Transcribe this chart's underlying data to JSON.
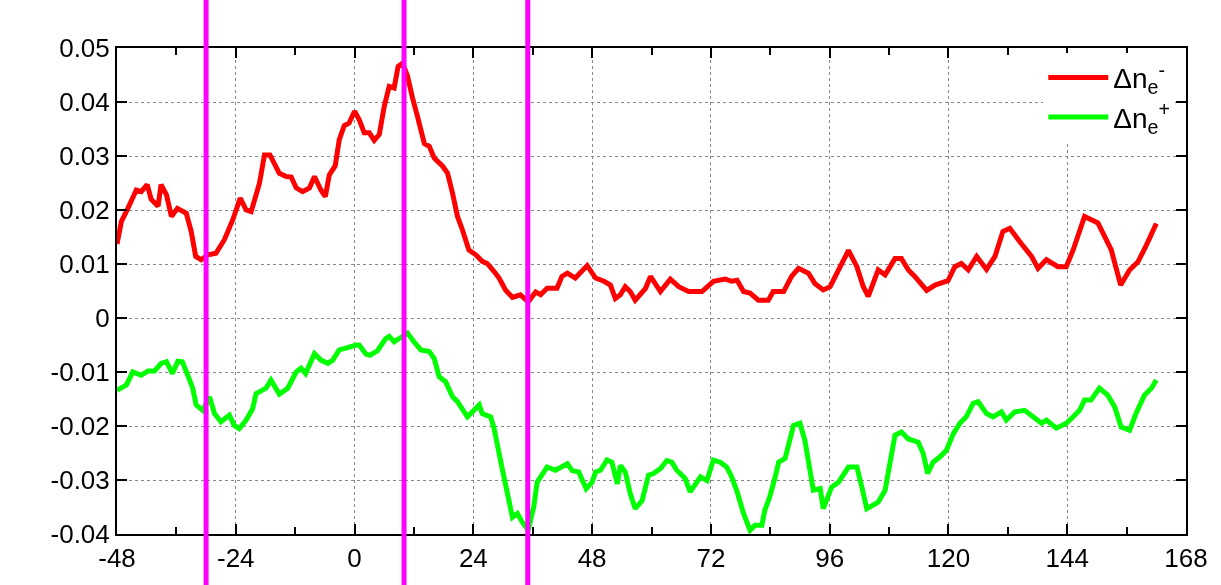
{
  "chart_data": {
    "type": "line",
    "xlim": [
      -48,
      168
    ],
    "ylim": [
      -0.04,
      0.05
    ],
    "xticks": [
      -48,
      {
        "value": -36,
        "label": null
      },
      -24,
      {
        "value": -12,
        "label": null
      },
      0,
      {
        "value": 12,
        "label": null
      },
      24,
      {
        "value": 36,
        "label": null
      },
      48,
      {
        "value": 60,
        "label": null
      },
      72,
      {
        "value": 84,
        "label": null
      },
      96,
      {
        "value": 108,
        "label": null
      },
      120,
      {
        "value": 132,
        "label": null
      },
      144,
      {
        "value": 156,
        "label": null
      },
      168
    ],
    "yticks": [
      -0.04,
      -0.03,
      -0.02,
      -0.01,
      0,
      0.01,
      0.02,
      0.03,
      0.04,
      0.05
    ],
    "grid": true,
    "legend": "top right",
    "line_style": "solid",
    "marker": "none",
    "ref_lines": [
      {
        "axis": "x",
        "value": -30,
        "color": "#ff00ff"
      },
      {
        "axis": "x",
        "value": 10,
        "color": "#ff00ff"
      },
      {
        "axis": "x",
        "value": 35,
        "color": "#ff00ff"
      }
    ],
    "series": [
      {
        "name": "Δn$_{e}$$^{-}$",
        "color": "#ff0000",
        "x": [
          -48.0,
          -47.1,
          -45.8,
          -44.1,
          -43.1,
          -41.9,
          -41.1,
          -39.7,
          -39.1,
          -38.0,
          -37.0,
          -35.8,
          -34.0,
          -33.0,
          -32.1,
          -31.0,
          -29.6,
          -28.0,
          -26.3,
          -24.6,
          -23.1,
          -21.9,
          -20.9,
          -19.2,
          -18.2,
          -17.1,
          -15.2,
          -13.8,
          -12.8,
          -11.8,
          -10.5,
          -9.1,
          -8.1,
          -6.8,
          -5.9,
          -5.1,
          -3.9,
          -3.1,
          -2.1,
          -1.1,
          0,
          0.95,
          1.96,
          2.97,
          3.98,
          5.0,
          6.0,
          7.0,
          8.0,
          8.8,
          9.7,
          10.7,
          11.7,
          12.7,
          14.1,
          15.1,
          16.1,
          17.8,
          18.8,
          19.8,
          20.8,
          21.8,
          23.1,
          24.5,
          25.8,
          26.8,
          28.2,
          29.2,
          30.5,
          31.9,
          33.5,
          35.1,
          36.6,
          37.6,
          38.9,
          40.9,
          41.9,
          43.0,
          44.6,
          47.0,
          48.7,
          50.4,
          51.7,
          52.7,
          53.7,
          54.7,
          55.7,
          56.7,
          58.8,
          59.8,
          61.8,
          63.8,
          65.5,
          67.5,
          70.2,
          72.5,
          74.9,
          76.2,
          77.3,
          78.6,
          79.9,
          81.6,
          83.6,
          84.6,
          86.7,
          88.3,
          89.7,
          91.7,
          93.0,
          94.7,
          96.1,
          97.8,
          99.8,
          101.5,
          102.8,
          103.8,
          105.8,
          107.2,
          109.2,
          110.5,
          111.9,
          113.2,
          115.6,
          117.3,
          119.9,
          121.3,
          122.6,
          124.0,
          125.7,
          127.7,
          129.4,
          131.0,
          132.4,
          134.7,
          136.8,
          138.1,
          139.8,
          142.1,
          143.8,
          145.2,
          147.5,
          150.2,
          152.9,
          154.8,
          156.6,
          158.3,
          160.0,
          162.0
        ],
        "values": [
          0.0137,
          0.0179,
          0.0203,
          0.0237,
          0.0234,
          0.0247,
          0.022,
          0.0207,
          0.0247,
          0.0228,
          0.0188,
          0.0203,
          0.0194,
          0.016,
          0.0114,
          0.0108,
          0.0117,
          0.012,
          0.0145,
          0.0182,
          0.0222,
          0.02,
          0.0197,
          0.025,
          0.0302,
          0.0302,
          0.0268,
          0.0262,
          0.0261,
          0.0241,
          0.0234,
          0.0241,
          0.0262,
          0.0237,
          0.0225,
          0.0265,
          0.0282,
          0.033,
          0.0356,
          0.0361,
          0.0383,
          0.0367,
          0.0343,
          0.0343,
          0.0329,
          0.034,
          0.0392,
          0.0429,
          0.0426,
          0.0466,
          0.0472,
          0.0448,
          0.0408,
          0.0374,
          0.0323,
          0.0318,
          0.0296,
          0.0281,
          0.0268,
          0.0231,
          0.0188,
          0.0163,
          0.0126,
          0.0117,
          0.0105,
          0.0101,
          0.0086,
          0.0074,
          0.0052,
          0.0038,
          0.0043,
          0.003,
          0.0048,
          0.0043,
          0.0055,
          0.0055,
          0.0077,
          0.0083,
          0.0074,
          0.0097,
          0.0074,
          0.0068,
          0.0061,
          0.0036,
          0.0043,
          0.0058,
          0.0049,
          0.0033,
          0.0055,
          0.0077,
          0.0049,
          0.0072,
          0.0058,
          0.0049,
          0.0049,
          0.0068,
          0.0072,
          0.0068,
          0.007,
          0.0049,
          0.0046,
          0.0033,
          0.0033,
          0.0049,
          0.0049,
          0.0077,
          0.0092,
          0.0083,
          0.0064,
          0.0052,
          0.0058,
          0.0089,
          0.0125,
          0.0095,
          0.0058,
          0.004,
          0.0089,
          0.008,
          0.011,
          0.011,
          0.0089,
          0.0077,
          0.0051,
          0.0061,
          0.0069,
          0.0095,
          0.0101,
          0.0089,
          0.0114,
          0.009,
          0.0114,
          0.016,
          0.0166,
          0.0138,
          0.0114,
          0.0092,
          0.0108,
          0.0095,
          0.0095,
          0.0126,
          0.0188,
          0.0176,
          0.0126,
          0.0061,
          0.0089,
          0.0104,
          0.0135,
          0.0175
        ]
      },
      {
        "name": "Δn$_{e}$$^{+}$",
        "color": "#00ff00",
        "x": [
          -48.0,
          -46.1,
          -44.8,
          -43.1,
          -41.7,
          -40.4,
          -39.1,
          -38.0,
          -36.8,
          -35.7,
          -34.8,
          -33.7,
          -32.7,
          -32.0,
          -30.7,
          -29.3,
          -28.3,
          -27.0,
          -25.3,
          -24.3,
          -23.3,
          -21.9,
          -20.6,
          -19.9,
          -17.9,
          -16.9,
          -15.2,
          -13.5,
          -11.8,
          -10.8,
          -9.9,
          -8.1,
          -6.8,
          -5.4,
          -4.4,
          -3.1,
          -1.4,
          0.3,
          0.95,
          2.3,
          3.1,
          4.6,
          6.3,
          7.0,
          8.0,
          9.7,
          10.7,
          12.0,
          13.4,
          15.1,
          16.1,
          17.1,
          18.4,
          19.8,
          20.8,
          22.8,
          25.2,
          25.8,
          27.5,
          28.2,
          29.9,
          31.9,
          32.9,
          33.9,
          35.1,
          36.2,
          36.9,
          38.9,
          40.6,
          43.0,
          44.0,
          45.3,
          46.8,
          48.0,
          48.7,
          49.7,
          51.0,
          52.0,
          53.1,
          53.7,
          54.7,
          55.7,
          56.7,
          58.1,
          59.4,
          60.4,
          61.8,
          63.1,
          64.1,
          65.1,
          65.8,
          66.8,
          67.8,
          69.9,
          71.2,
          72.5,
          73.9,
          75.2,
          76.2,
          77.3,
          78.6,
          79.9,
          80.9,
          82.3,
          82.9,
          83.9,
          85.0,
          85.7,
          87.0,
          88.7,
          90.0,
          91.0,
          92.7,
          94.1,
          94.7,
          96.4,
          97.8,
          99.8,
          101.5,
          102.5,
          103.5,
          105.8,
          107.2,
          109.2,
          110.5,
          111.9,
          113.9,
          114.9,
          115.8,
          116.9,
          118.3,
          119.6,
          121.0,
          122.3,
          123.6,
          125.0,
          126.0,
          127.7,
          129.0,
          130.7,
          131.7,
          133.4,
          135.4,
          137.1,
          138.8,
          139.8,
          141.8,
          143.8,
          145.2,
          146.5,
          147.5,
          148.8,
          150.5,
          152.2,
          153.6,
          154.9,
          156.6,
          157.9,
          159.6,
          161.0,
          162.0
        ],
        "values": [
          -0.0134,
          -0.0124,
          -0.01,
          -0.0106,
          -0.0098,
          -0.0098,
          -0.0084,
          -0.0081,
          -0.0103,
          -0.008,
          -0.0081,
          -0.0106,
          -0.013,
          -0.0161,
          -0.0171,
          -0.0146,
          -0.0177,
          -0.0192,
          -0.018,
          -0.0199,
          -0.0205,
          -0.0189,
          -0.0168,
          -0.014,
          -0.013,
          -0.0115,
          -0.0141,
          -0.013,
          -0.01,
          -0.0093,
          -0.0103,
          -0.0066,
          -0.0078,
          -0.0084,
          -0.0078,
          -0.0059,
          -0.0055,
          -0.005,
          -0.005,
          -0.0067,
          -0.0069,
          -0.0061,
          -0.0038,
          -0.0034,
          -0.0044,
          -0.0034,
          -0.0028,
          -0.0044,
          -0.0059,
          -0.0062,
          -0.0075,
          -0.0109,
          -0.0118,
          -0.0146,
          -0.0155,
          -0.0183,
          -0.0161,
          -0.0177,
          -0.0183,
          -0.0205,
          -0.0282,
          -0.0369,
          -0.0362,
          -0.0378,
          -0.0393,
          -0.035,
          -0.0304,
          -0.0276,
          -0.0282,
          -0.027,
          -0.0283,
          -0.0285,
          -0.0316,
          -0.0304,
          -0.0285,
          -0.0282,
          -0.0263,
          -0.0267,
          -0.0307,
          -0.0273,
          -0.0285,
          -0.0325,
          -0.0353,
          -0.0338,
          -0.0291,
          -0.0288,
          -0.0279,
          -0.0264,
          -0.0267,
          -0.0282,
          -0.0288,
          -0.0297,
          -0.0322,
          -0.0294,
          -0.0301,
          -0.0263,
          -0.0267,
          -0.0276,
          -0.0294,
          -0.0322,
          -0.0362,
          -0.0393,
          -0.0384,
          -0.0384,
          -0.0356,
          -0.0331,
          -0.0294,
          -0.0267,
          -0.026,
          -0.0199,
          -0.0195,
          -0.0227,
          -0.0319,
          -0.0316,
          -0.0353,
          -0.0313,
          -0.0304,
          -0.0276,
          -0.0276,
          -0.0313,
          -0.0353,
          -0.0341,
          -0.0319,
          -0.0217,
          -0.0211,
          -0.0224,
          -0.023,
          -0.0251,
          -0.0288,
          -0.0267,
          -0.0257,
          -0.0245,
          -0.0214,
          -0.0195,
          -0.0183,
          -0.0158,
          -0.0155,
          -0.0177,
          -0.0183,
          -0.0174,
          -0.0189,
          -0.0174,
          -0.0171,
          -0.0183,
          -0.0195,
          -0.0189,
          -0.0204,
          -0.0195,
          -0.0183,
          -0.0171,
          -0.0152,
          -0.0152,
          -0.013,
          -0.0143,
          -0.0165,
          -0.0202,
          -0.0208,
          -0.0177,
          -0.0143,
          -0.013,
          -0.0115
        ]
      }
    ]
  }
}
